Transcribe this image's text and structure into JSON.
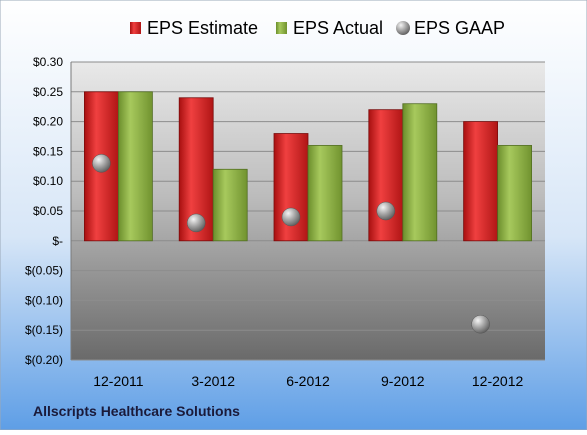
{
  "chart_data": {
    "type": "bar",
    "categories": [
      "12-2011",
      "3-2012",
      "6-2012",
      "9-2012",
      "12-2012"
    ],
    "series": [
      {
        "name": "EPS Estimate",
        "kind": "bar",
        "color": "#d42020",
        "values": [
          0.25,
          0.24,
          0.18,
          0.22,
          0.2
        ]
      },
      {
        "name": "EPS Actual",
        "kind": "bar",
        "color": "#8ab044",
        "values": [
          0.25,
          0.12,
          0.16,
          0.23,
          0.16
        ]
      },
      {
        "name": "EPS GAAP",
        "kind": "marker",
        "color": "#a8a8a8",
        "values": [
          0.13,
          0.03,
          0.04,
          0.05,
          -0.14
        ]
      }
    ],
    "ylim": [
      -0.2,
      0.3
    ],
    "yticks": [
      0.3,
      0.25,
      0.2,
      0.15,
      0.1,
      0.05,
      0.0,
      -0.05,
      -0.1,
      -0.15,
      -0.2
    ],
    "ytick_labels": [
      "$0.30",
      "$0.25",
      "$0.20",
      "$0.15",
      "$0.10",
      "$0.05",
      "$-",
      "$(0.05)",
      "$(0.10)",
      "$(0.15)",
      "$(0.20)"
    ],
    "grid": true,
    "legend_position": "top",
    "footer_label": "Allscripts Healthcare Solutions",
    "background_colors": {
      "top": "#ffffff",
      "bottom": "#5e9ee6"
    }
  }
}
